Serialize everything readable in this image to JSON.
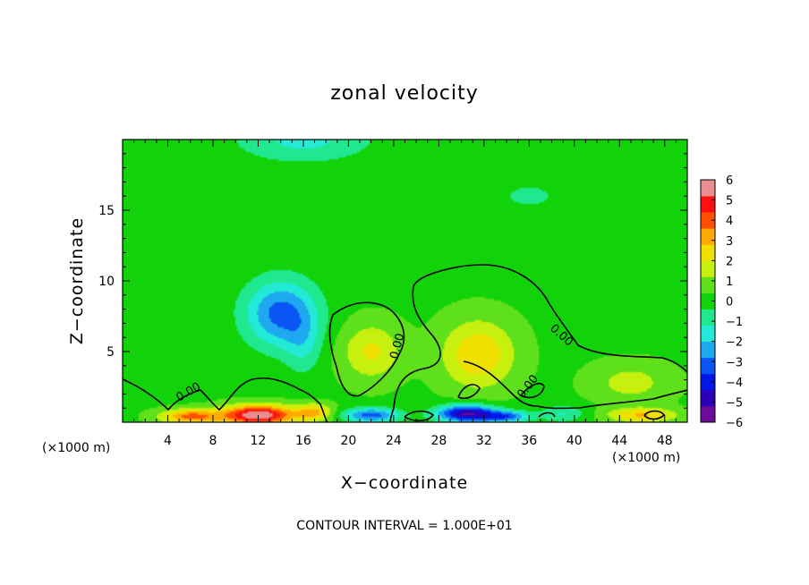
{
  "chart_data": {
    "type": "heatmap",
    "title": "zonal velocity",
    "xlabel": "X−coordinate",
    "ylabel": "Z−coordinate",
    "x_unit": "(×1000 m)",
    "x_unit_right": "(×1000 m)",
    "xlim": [
      0,
      50
    ],
    "ylim": [
      0,
      20
    ],
    "x_ticks": [
      4,
      8,
      12,
      16,
      20,
      24,
      28,
      32,
      36,
      40,
      44,
      48
    ],
    "x_tick_labels": [
      "4",
      "8",
      "12",
      "16",
      "20",
      "24",
      "28",
      "32",
      "36",
      "40",
      "44",
      "48"
    ],
    "y_ticks": [
      5,
      10,
      15
    ],
    "y_tick_labels": [
      "5",
      "10",
      "15"
    ],
    "colorbar": {
      "min": -6,
      "max": 6,
      "tick_labels": [
        "6",
        "5",
        "4",
        "3",
        "2",
        "1",
        "0",
        "−1",
        "−2",
        "−3",
        "−4",
        "−5",
        "−6"
      ],
      "colors": [
        "#6a0d9b",
        "#2b00b8",
        "#0017e6",
        "#0a55f5",
        "#1ea8f0",
        "#22ead6",
        "#20e88f",
        "#12d20a",
        "#5ee01a",
        "#c8f00e",
        "#f0e000",
        "#ffaa00",
        "#ff5000",
        "#ff1010",
        "#e89090"
      ]
    },
    "contour_label": "0.00",
    "contour_interval": "CONTOUR INTERVAL = 1.000E+01",
    "features": [
      {
        "name": "negative-core",
        "x": 14,
        "z": 7.7,
        "value": -3.1
      },
      {
        "name": "positive-lobe",
        "x": 22,
        "z": 5,
        "value": 1.8
      },
      {
        "name": "positive-lobe",
        "x": 31.5,
        "z": 4.9,
        "value": 2.4
      },
      {
        "name": "positive-lobe",
        "x": 45,
        "z": 2.8,
        "value": 1.2
      },
      {
        "name": "surface-max",
        "x": 13,
        "z": 0.4,
        "value": 5.5
      },
      {
        "name": "surface-min",
        "x": 31,
        "z": 0.5,
        "value": -5.2
      },
      {
        "name": "upper-negative",
        "x": 16,
        "z": 19.5,
        "value": -1.6
      }
    ]
  }
}
